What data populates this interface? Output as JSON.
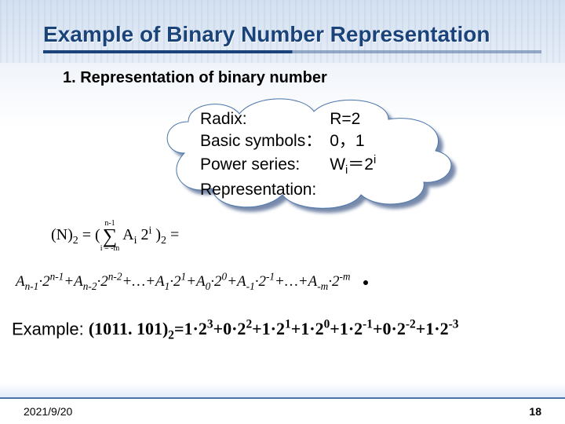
{
  "colors": {
    "title_color": "#1a437a",
    "text_color": "#000000",
    "cloud_shadow": "#0a2a66",
    "cloud_fill": "#ffffff",
    "cloud_stroke": "#4a75aa",
    "background_top": "#e0eaf5",
    "background_bottom": "#ffffff"
  },
  "title": "Example of Binary Number Representation",
  "subtitle": "1. Representation of binary number",
  "cloud": {
    "rows": [
      {
        "label": "Radix:",
        "value_html": "R=2"
      },
      {
        "label": "Basic symbols：",
        "value_html": "0，1"
      },
      {
        "label": "Power series:",
        "value_html": "W<span class='sub'>i</span>＝2<span class='sup'>i</span>"
      },
      {
        "label": "Representation:",
        "value_html": ""
      }
    ]
  },
  "formula_N2": {
    "lead": "(N)",
    "lead_sub": "2",
    "eq": " = (",
    "sigma_top": "n-1",
    "sigma_bot": "i = -m",
    "body_html": " A<span class='sub'>i</span> 2<span class='sup'>i</span> )<span class='sub'>2</span> ="
  },
  "expansion": {
    "terms": [
      "A<span class='sub'>n-1</span>·2<span class='sup'>n-1</span>",
      "+A<span class='sub'>n-2</span>·2<span class='sup'>n-2</span>",
      "+…+A<span class='sub'>1</span>·2<span class='sup'>1</span>",
      "+A<span class='sub'>0</span>·2<span class='sup'>0</span>",
      "+A<span class='sub'>-1</span>·2<span class='sup'>-1</span>",
      "+…+A<span class='sub'>-m</span>·2<span class='sup'>-m</span>"
    ]
  },
  "example": {
    "label": "Example: ",
    "eq_html": "(1011. 101)<span class='sub'>2</span>=1·2<span class='sup'>3</span>+0·2<span class='sup'>2</span>+1·2<span class='sup'>1</span>+1·2<span class='sup'>0</span>+1·2<span class='sup'>-1</span>+0·2<span class='sup'>-2</span>+1·2<span class='sup'>-3</span>"
  },
  "footer": {
    "date": "2021/9/20",
    "page": "18"
  }
}
